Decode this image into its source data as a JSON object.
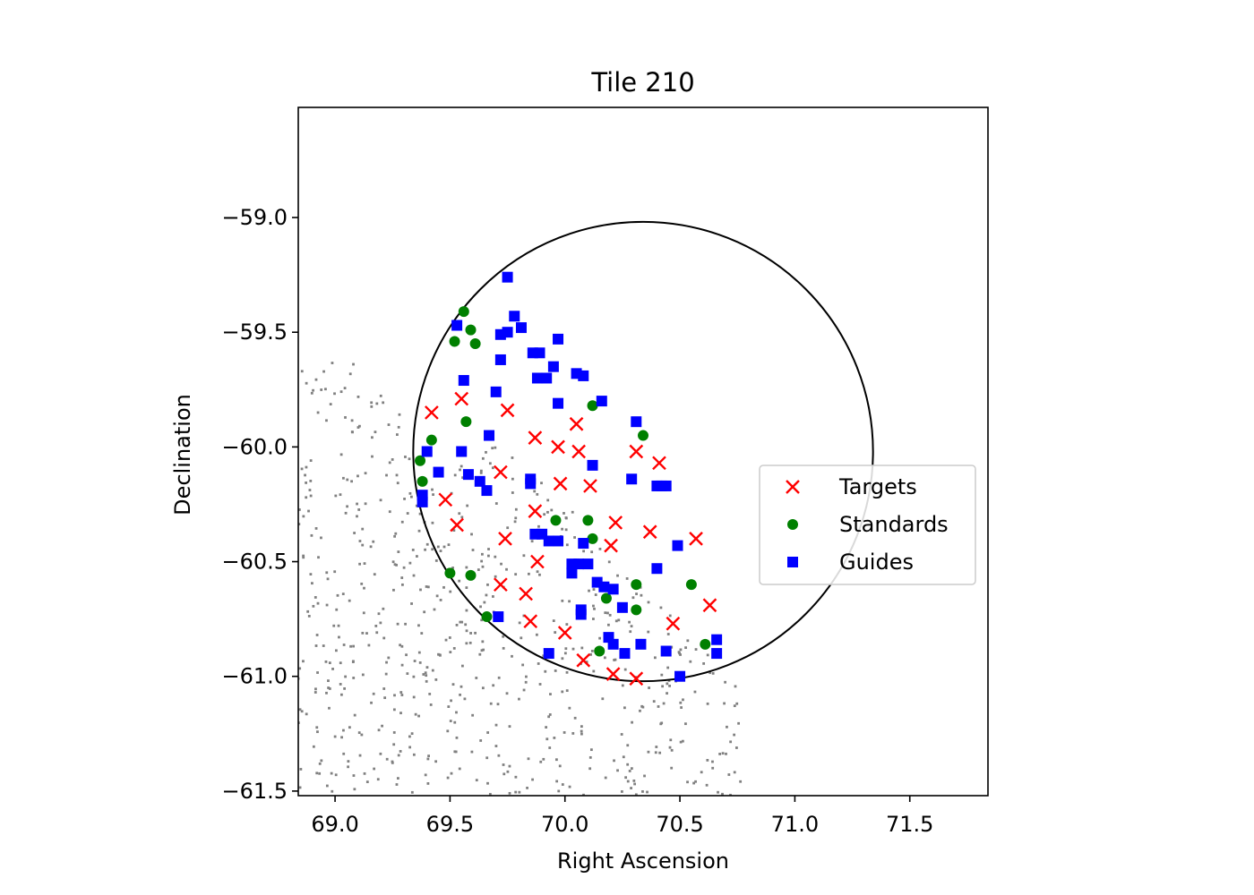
{
  "chart_data": {
    "type": "scatter",
    "title": "Tile 210",
    "xlabel": "Right Ascension",
    "ylabel": "Declination",
    "xlim": [
      68.84,
      71.84
    ],
    "ylim": [
      -61.52,
      -58.52
    ],
    "xticks": [
      69.0,
      69.5,
      70.0,
      70.5,
      71.0,
      71.5
    ],
    "yticks": [
      -59.0,
      -59.5,
      -60.0,
      -60.5,
      -61.0,
      -61.5
    ],
    "xtick_labels": [
      "69.0",
      "69.5",
      "70.0",
      "70.5",
      "71.0",
      "71.5"
    ],
    "ytick_labels": [
      "−59.0",
      "−59.5",
      "−60.0",
      "−60.5",
      "−61.0",
      "−61.5"
    ],
    "grid": false,
    "legend_position": "center-right",
    "tile_circle": {
      "center": [
        70.34,
        -60.02
      ],
      "radius": 1.0
    },
    "background_color": "#808080",
    "series": [
      {
        "name": "Targets",
        "marker": "x",
        "color": "#ff0000",
        "points": [
          [
            69.42,
            -59.85
          ],
          [
            69.55,
            -59.79
          ],
          [
            69.75,
            -59.84
          ],
          [
            69.72,
            -60.11
          ],
          [
            69.87,
            -59.96
          ],
          [
            69.97,
            -60.0
          ],
          [
            70.05,
            -59.9
          ],
          [
            70.06,
            -60.02
          ],
          [
            69.98,
            -60.16
          ],
          [
            70.11,
            -60.17
          ],
          [
            70.31,
            -60.02
          ],
          [
            70.41,
            -60.07
          ],
          [
            69.48,
            -60.23
          ],
          [
            69.53,
            -60.34
          ],
          [
            69.74,
            -60.4
          ],
          [
            69.87,
            -60.28
          ],
          [
            70.22,
            -60.33
          ],
          [
            70.2,
            -60.43
          ],
          [
            70.37,
            -60.37
          ],
          [
            70.57,
            -60.4
          ],
          [
            69.88,
            -60.5
          ],
          [
            69.72,
            -60.6
          ],
          [
            69.83,
            -60.64
          ],
          [
            69.85,
            -60.76
          ],
          [
            70.0,
            -60.81
          ],
          [
            70.08,
            -60.93
          ],
          [
            70.21,
            -60.99
          ],
          [
            70.31,
            -61.01
          ],
          [
            70.47,
            -60.77
          ],
          [
            70.63,
            -60.69
          ]
        ]
      },
      {
        "name": "Standards",
        "marker": "circle",
        "color": "#008000",
        "points": [
          [
            69.56,
            -59.41
          ],
          [
            69.52,
            -59.54
          ],
          [
            69.59,
            -59.49
          ],
          [
            69.61,
            -59.55
          ],
          [
            69.57,
            -59.89
          ],
          [
            69.42,
            -59.97
          ],
          [
            69.37,
            -60.06
          ],
          [
            69.38,
            -60.15
          ],
          [
            70.12,
            -59.82
          ],
          [
            70.34,
            -59.95
          ],
          [
            69.96,
            -60.32
          ],
          [
            70.1,
            -60.32
          ],
          [
            70.12,
            -60.4
          ],
          [
            69.5,
            -60.55
          ],
          [
            69.59,
            -60.56
          ],
          [
            69.66,
            -60.74
          ],
          [
            70.18,
            -60.66
          ],
          [
            70.31,
            -60.6
          ],
          [
            70.31,
            -60.71
          ],
          [
            70.15,
            -60.89
          ],
          [
            70.55,
            -60.6
          ],
          [
            70.61,
            -60.86
          ]
        ]
      },
      {
        "name": "Guides",
        "marker": "square",
        "color": "#0000ff",
        "points": [
          [
            69.75,
            -59.26
          ],
          [
            69.53,
            -59.47
          ],
          [
            69.78,
            -59.43
          ],
          [
            69.81,
            -59.48
          ],
          [
            69.75,
            -59.5
          ],
          [
            69.72,
            -59.51
          ],
          [
            69.97,
            -59.53
          ],
          [
            69.86,
            -59.59
          ],
          [
            69.89,
            -59.59
          ],
          [
            69.72,
            -59.62
          ],
          [
            69.95,
            -59.65
          ],
          [
            69.88,
            -59.7
          ],
          [
            69.92,
            -59.7
          ],
          [
            70.05,
            -59.68
          ],
          [
            70.08,
            -59.69
          ],
          [
            69.56,
            -59.71
          ],
          [
            69.7,
            -59.76
          ],
          [
            69.97,
            -59.81
          ],
          [
            70.16,
            -59.8
          ],
          [
            70.31,
            -59.89
          ],
          [
            69.67,
            -59.95
          ],
          [
            69.55,
            -60.02
          ],
          [
            69.4,
            -60.02
          ],
          [
            69.45,
            -60.11
          ],
          [
            69.58,
            -60.12
          ],
          [
            69.63,
            -60.15
          ],
          [
            69.66,
            -60.19
          ],
          [
            69.85,
            -60.14
          ],
          [
            69.85,
            -60.16
          ],
          [
            69.38,
            -60.21
          ],
          [
            69.38,
            -60.24
          ],
          [
            70.12,
            -60.08
          ],
          [
            70.29,
            -60.14
          ],
          [
            70.4,
            -60.17
          ],
          [
            70.42,
            -60.17
          ],
          [
            70.44,
            -60.17
          ],
          [
            69.87,
            -60.38
          ],
          [
            69.9,
            -60.38
          ],
          [
            69.93,
            -60.41
          ],
          [
            69.97,
            -60.41
          ],
          [
            70.08,
            -60.42
          ],
          [
            70.49,
            -60.43
          ],
          [
            70.03,
            -60.51
          ],
          [
            70.06,
            -60.51
          ],
          [
            70.1,
            -60.51
          ],
          [
            70.03,
            -60.55
          ],
          [
            70.14,
            -60.59
          ],
          [
            70.17,
            -60.61
          ],
          [
            70.21,
            -60.62
          ],
          [
            70.4,
            -60.53
          ],
          [
            69.71,
            -60.74
          ],
          [
            70.07,
            -60.71
          ],
          [
            70.07,
            -60.73
          ],
          [
            70.25,
            -60.7
          ],
          [
            70.19,
            -60.83
          ],
          [
            70.21,
            -60.86
          ],
          [
            69.93,
            -60.9
          ],
          [
            70.26,
            -60.9
          ],
          [
            70.33,
            -60.86
          ],
          [
            70.44,
            -60.89
          ],
          [
            70.66,
            -60.84
          ],
          [
            70.66,
            -60.9
          ],
          [
            70.5,
            -61.0
          ]
        ]
      }
    ]
  }
}
